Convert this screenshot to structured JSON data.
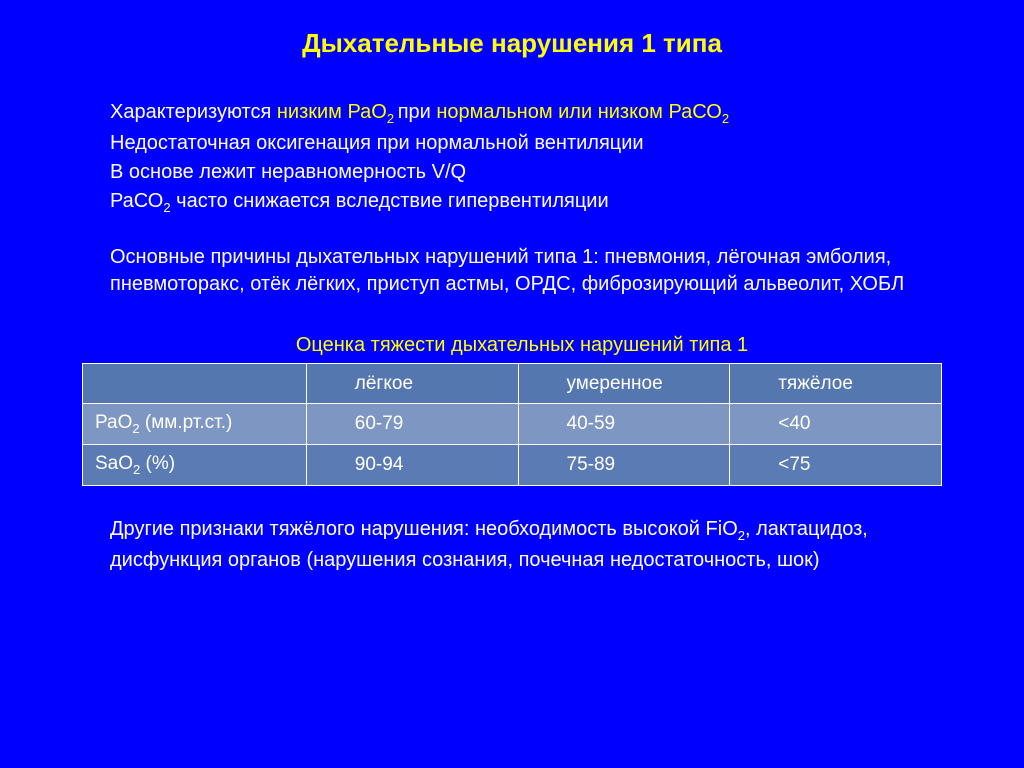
{
  "title": "Дыхательные нарушения 1 типа",
  "intro": {
    "prefix": "Характеризуются ",
    "low_pao2": "низким РаО",
    "sub2_a": "2 ",
    "mid": "при ",
    "normal_or_low": "нормальном или низком РаСО",
    "sub2_b": "2"
  },
  "lines": {
    "l2": "Недостаточная оксигенация при нормальной вентиляции",
    "l3": "В основе лежит неравномерность V/Q",
    "l4_a": "РаСО",
    "l4_sub": "2",
    "l4_b": " часто снижается вследствие гипервентиляции"
  },
  "causes": "Основные причины дыхательных нарушений типа 1: пневмония, лёгочная эмболия, пневмоторакс, отёк лёгких, приступ астмы, ОРДС, фиброзирующий альвеолит, ХОБЛ",
  "table": {
    "caption": "Оценка тяжести дыхательных нарушений типа 1",
    "headers": {
      "c1": "",
      "c2": "лёгкое",
      "c3": "умеренное",
      "c4": "тяжёлое"
    },
    "row1": {
      "label_a": "РаО",
      "label_sub": "2",
      "label_b": " (мм.рт.ст.)",
      "v1": "60-79",
      "v2": "40-59",
      "v3": "<40"
    },
    "row2": {
      "label_a": "SaO",
      "label_sub": "2",
      "label_b": " (%)",
      "v1": "90-94",
      "v2": "75-89",
      "v3": "<75"
    }
  },
  "footer": {
    "a": "Другие признаки тяжёлого нарушения: необходимость высокой FiO",
    "sub": "2",
    "b": ", лактацидоз, дисфункция органов (нарушения сознания, почечная недостаточность, шок)"
  },
  "style": {
    "background": "#0000ff",
    "accent": "#ffff00",
    "text": "#ffffff",
    "table_bg1": "#5b7bb4",
    "table_bg2": "#7d96c2",
    "border": "#ffffff"
  }
}
